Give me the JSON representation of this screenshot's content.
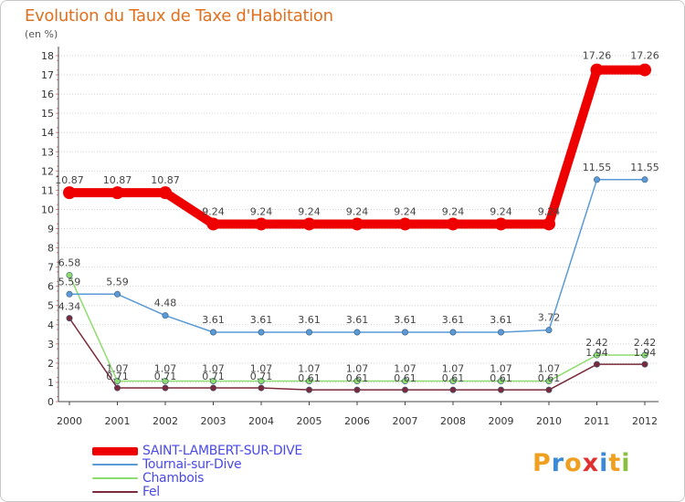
{
  "title": "Evolution du Taux de Taxe d'Habitation",
  "subtitle": "(en %)",
  "logo": {
    "letters": [
      "P",
      "r",
      "o",
      "x",
      "i",
      "t",
      "i"
    ],
    "colors": [
      "#f0a020",
      "#3a8ad8",
      "#f0a020",
      "#e03030",
      "#3a8ad8",
      "#f0a020",
      "#8ac040"
    ]
  },
  "chart_data": {
    "type": "line",
    "title": "Evolution du Taux de Taxe d'Habitation",
    "ylabel": "(en %)",
    "xlabel": "",
    "categories": [
      "2000",
      "2001",
      "2002",
      "2003",
      "2004",
      "2005",
      "2006",
      "2007",
      "2008",
      "2009",
      "2010",
      "2011",
      "2012"
    ],
    "yticks": [
      "0",
      "1",
      "2",
      "3",
      "4",
      "5",
      "6",
      "7",
      "8",
      "9",
      "10",
      "11",
      "12",
      "13",
      "14",
      "15",
      "16",
      "17",
      "18"
    ],
    "ylim": [
      0,
      18
    ],
    "grid": "horizontal-dotted",
    "legend_position": "bottom-left",
    "series": [
      {
        "name": "SAINT-LAMBERT-SUR-DIVE",
        "color": "#ee0000",
        "values": [
          10.87,
          10.87,
          10.87,
          9.24,
          9.24,
          9.24,
          9.24,
          9.24,
          9.24,
          9.24,
          9.24,
          17.26,
          17.26
        ],
        "labels": [
          "10.87",
          "10.87",
          "10.87",
          "9.24",
          "9.24",
          "9.24",
          "9.24",
          "9.24",
          "9.24",
          "9.24",
          "9.24",
          "17.26",
          "17.26"
        ]
      },
      {
        "name": "Tournai-sur-Dive",
        "color": "#5a9ad6",
        "values": [
          5.59,
          5.59,
          4.48,
          3.61,
          3.61,
          3.61,
          3.61,
          3.61,
          3.61,
          3.61,
          3.72,
          11.55,
          11.55
        ],
        "labels": [
          "5.59",
          "5.59",
          "4.48",
          "3.61",
          "3.61",
          "3.61",
          "3.61",
          "3.61",
          "3.61",
          "3.61",
          "3.72",
          "11.55",
          "11.55"
        ]
      },
      {
        "name": "Chambois",
        "color": "#8edc6e",
        "values": [
          6.58,
          1.07,
          1.07,
          1.07,
          1.07,
          1.07,
          1.07,
          1.07,
          1.07,
          1.07,
          1.07,
          2.42,
          2.42
        ],
        "labels": [
          "6.58",
          "1.07",
          "1.07",
          "1.07",
          "1.07",
          "1.07",
          "1.07",
          "1.07",
          "1.07",
          "1.07",
          "1.07",
          "2.42",
          "2.42"
        ]
      },
      {
        "name": "Fel",
        "color": "#7a2a3a",
        "values": [
          4.34,
          0.71,
          0.71,
          0.71,
          0.71,
          0.61,
          0.61,
          0.61,
          0.61,
          0.61,
          0.61,
          1.94,
          1.94
        ],
        "labels": [
          "4.34",
          "0.71",
          "0.71",
          "0.71",
          "0.71",
          "0.61",
          "0.61",
          "0.61",
          "0.61",
          "0.61",
          "0.61",
          "1.94",
          "1.94"
        ]
      }
    ]
  }
}
